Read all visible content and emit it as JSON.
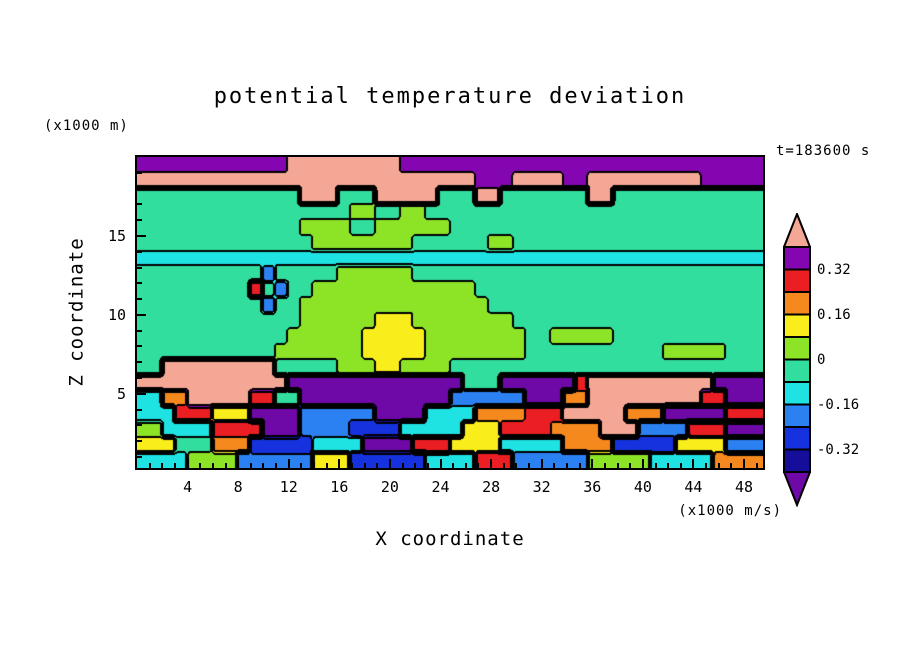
{
  "chart_data": {
    "type": "heatmap",
    "title": "potential temperature deviation",
    "xlabel": "X coordinate",
    "ylabel": "Z coordinate",
    "y_unit_note": "(x1000 m)",
    "x_unit_note": "(x1000 m/s)",
    "time_annotation": "t=183600 s",
    "xlim": [
      0,
      49.5
    ],
    "zlim": [
      0.3,
      20
    ],
    "x_ticks": [
      4,
      8,
      12,
      16,
      20,
      24,
      28,
      32,
      36,
      40,
      44,
      48
    ],
    "z_ticks": [
      5,
      10,
      15
    ],
    "levels": [
      -0.4,
      -0.32,
      -0.24,
      -0.16,
      -0.08,
      0,
      0.08,
      0.16,
      0.24,
      0.32,
      0.4
    ],
    "colors": [
      "#6E09A8",
      "#150E9B",
      "#1632DE",
      "#2B80F2",
      "#1FE2E2",
      "#31DE9E",
      "#8DE427",
      "#F9ED1B",
      "#F6891E",
      "#EB1E23",
      "#8306B0",
      "#F5A795"
    ],
    "colorbar_labels": [
      "0.32",
      "0.16",
      "0",
      "-0.16",
      "-0.32"
    ],
    "legend_position": "right",
    "grid": {
      "cols": 50,
      "rows": 20,
      "order": "top-to-bottom",
      "rows_rle": [
        [
          [
            0.36,
            12
          ],
          [
            0.45,
            9
          ],
          [
            0.36,
            29
          ]
        ],
        [
          [
            0.45,
            27
          ],
          [
            0.36,
            3
          ],
          [
            0.45,
            4
          ],
          [
            0.36,
            2
          ],
          [
            0.45,
            9
          ],
          [
            0.36,
            5
          ]
        ],
        [
          [
            -0.04,
            13
          ],
          [
            0.45,
            3
          ],
          [
            -0.04,
            3
          ],
          [
            0.45,
            5
          ],
          [
            -0.04,
            3
          ],
          [
            0.45,
            2
          ],
          [
            -0.04,
            7
          ],
          [
            0.45,
            2
          ],
          [
            -0.04,
            12
          ]
        ],
        [
          [
            -0.04,
            17
          ],
          [
            0.04,
            2
          ],
          [
            -0.04,
            2
          ],
          [
            0.04,
            2
          ],
          [
            -0.04,
            27
          ]
        ],
        [
          [
            -0.04,
            13
          ],
          [
            0.04,
            4
          ],
          [
            -0.04,
            2
          ],
          [
            0.04,
            6
          ],
          [
            -0.04,
            25
          ]
        ],
        [
          [
            -0.04,
            14
          ],
          [
            0.04,
            8
          ],
          [
            -0.04,
            6
          ],
          [
            0.04,
            2
          ],
          [
            -0.04,
            20
          ]
        ],
        [
          [
            -0.1,
            50
          ]
        ],
        [
          [
            -0.04,
            10
          ],
          [
            -0.22,
            1
          ],
          [
            -0.04,
            5
          ],
          [
            0.04,
            6
          ],
          [
            -0.04,
            28
          ]
        ],
        [
          [
            -0.04,
            9
          ],
          [
            0.3,
            1
          ],
          [
            -0.04,
            1
          ],
          [
            -0.22,
            1
          ],
          [
            -0.04,
            2
          ],
          [
            0.04,
            13
          ],
          [
            -0.04,
            23
          ]
        ],
        [
          [
            -0.04,
            10
          ],
          [
            -0.22,
            1
          ],
          [
            -0.04,
            2
          ],
          [
            0.04,
            15
          ],
          [
            -0.04,
            22
          ]
        ],
        [
          [
            -0.04,
            13
          ],
          [
            0.04,
            6
          ],
          [
            0.12,
            3
          ],
          [
            0.04,
            8
          ],
          [
            -0.04,
            20
          ]
        ],
        [
          [
            -0.04,
            12
          ],
          [
            0.04,
            6
          ],
          [
            0.12,
            5
          ],
          [
            0.04,
            8
          ],
          [
            -0.04,
            2
          ],
          [
            0.04,
            5
          ],
          [
            -0.04,
            12
          ]
        ],
        [
          [
            -0.04,
            11
          ],
          [
            0.04,
            7
          ],
          [
            0.12,
            5
          ],
          [
            0.04,
            8
          ],
          [
            -0.04,
            11
          ],
          [
            0.04,
            5
          ],
          [
            -0.04,
            3
          ]
        ],
        [
          [
            -0.04,
            2
          ],
          [
            0.45,
            9
          ],
          [
            -0.04,
            5
          ],
          [
            0.04,
            3
          ],
          [
            0.12,
            2
          ],
          [
            0.04,
            4
          ],
          [
            -0.04,
            25
          ]
        ],
        [
          [
            0.45,
            12
          ],
          [
            -0.44,
            14
          ],
          [
            -0.04,
            3
          ],
          [
            -0.44,
            6
          ],
          [
            0.3,
            1
          ],
          [
            0.45,
            10
          ],
          [
            -0.44,
            4
          ]
        ],
        [
          [
            -0.12,
            2
          ],
          [
            0.2,
            2
          ],
          [
            0.45,
            5
          ],
          [
            0.3,
            2
          ],
          [
            -0.04,
            2
          ],
          [
            -0.44,
            12
          ],
          [
            -0.22,
            6
          ],
          [
            -0.44,
            3
          ],
          [
            0.2,
            2
          ],
          [
            0.45,
            9
          ],
          [
            0.3,
            2
          ],
          [
            -0.44,
            3
          ]
        ],
        [
          [
            -0.12,
            3
          ],
          [
            0.3,
            3
          ],
          [
            0.12,
            3
          ],
          [
            -0.44,
            4
          ],
          [
            -0.22,
            6
          ],
          [
            -0.44,
            4
          ],
          [
            -0.12,
            4
          ],
          [
            0.2,
            4
          ],
          [
            0.3,
            3
          ],
          [
            0.45,
            5
          ],
          [
            0.2,
            3
          ],
          [
            -0.44,
            5
          ],
          [
            0.3,
            3
          ]
        ],
        [
          [
            0.04,
            2
          ],
          [
            -0.12,
            4
          ],
          [
            0.3,
            4
          ],
          [
            -0.44,
            3
          ],
          [
            -0.22,
            4
          ],
          [
            -0.3,
            4
          ],
          [
            -0.12,
            5
          ],
          [
            0.12,
            3
          ],
          [
            0.3,
            4
          ],
          [
            0.2,
            4
          ],
          [
            0.45,
            3
          ],
          [
            -0.22,
            4
          ],
          [
            0.3,
            3
          ],
          [
            -0.44,
            3
          ]
        ],
        [
          [
            0.12,
            3
          ],
          [
            -0.04,
            3
          ],
          [
            0.2,
            3
          ],
          [
            -0.3,
            5
          ],
          [
            -0.12,
            4
          ],
          [
            -0.44,
            4
          ],
          [
            0.3,
            3
          ],
          [
            0.12,
            4
          ],
          [
            -0.12,
            5
          ],
          [
            0.2,
            4
          ],
          [
            -0.3,
            5
          ],
          [
            0.12,
            4
          ],
          [
            -0.22,
            3
          ]
        ],
        [
          [
            -0.12,
            4
          ],
          [
            0.04,
            4
          ],
          [
            -0.22,
            6
          ],
          [
            0.12,
            3
          ],
          [
            -0.3,
            6
          ],
          [
            -0.12,
            4
          ],
          [
            0.3,
            3
          ],
          [
            -0.22,
            6
          ],
          [
            0.04,
            5
          ],
          [
            -0.12,
            5
          ],
          [
            0.2,
            4
          ]
        ]
      ]
    }
  }
}
